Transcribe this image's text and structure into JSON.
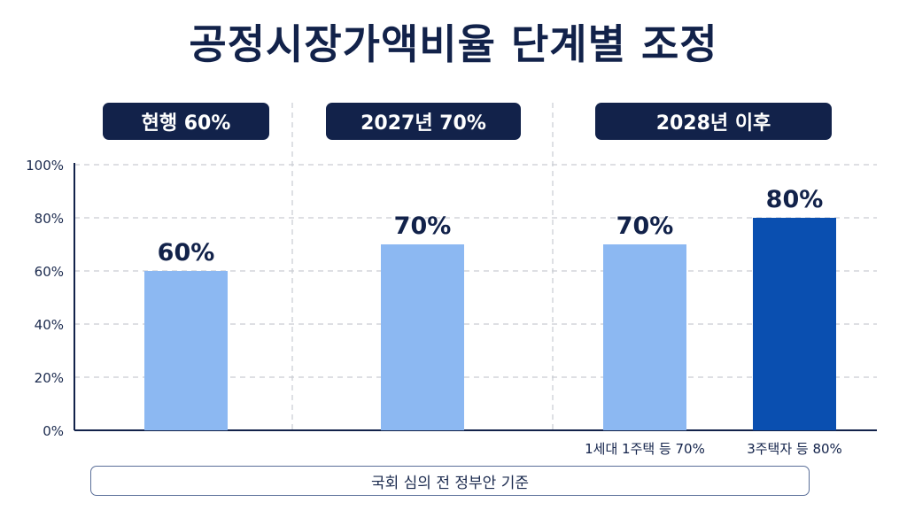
{
  "title": "공정시장가액비율 단계별 조정",
  "phases": [
    {
      "label": "현행 60%"
    },
    {
      "label": "2027년 70%"
    },
    {
      "label": "2028년 이후"
    }
  ],
  "footer_note": "국회 심의 전 정부안 기준",
  "chart_data": {
    "type": "bar",
    "title": "공정시장가액비율 단계별 조정",
    "xlabel": "",
    "ylabel": "",
    "ylim": [
      0,
      100
    ],
    "yticks": [
      "0%",
      "20%",
      "40%",
      "60%",
      "80%",
      "100%"
    ],
    "grid": true,
    "bars": [
      {
        "phase": 0,
        "value": 60,
        "label": "60%",
        "category": "",
        "color": "#8cb8f2"
      },
      {
        "phase": 1,
        "value": 70,
        "label": "70%",
        "category": "",
        "color": "#8cb8f2"
      },
      {
        "phase": 2,
        "value": 70,
        "label": "70%",
        "category": "1세대 1주택 등 70%",
        "color": "#8cb8f2"
      },
      {
        "phase": 2,
        "value": 80,
        "label": "80%",
        "category": "3주택자 등 80%",
        "color": "#0a4fb0"
      }
    ]
  }
}
